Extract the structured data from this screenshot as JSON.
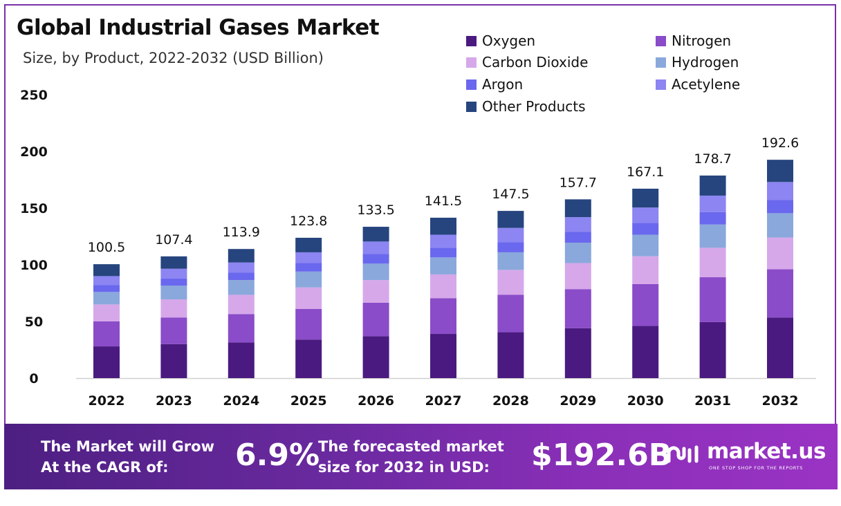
{
  "header": {
    "title": "Global Industrial Gases Market",
    "subtitle": "Size, by Product, 2022-2032 (USD Billion)"
  },
  "colors": {
    "frame": "#7a2fa8",
    "oxygen": "#4a1a80",
    "nitrogen": "#8a4cc8",
    "carbon_dioxide": "#d6a8ea",
    "hydrogen": "#8aa8dc",
    "argon": "#6a68ee",
    "acetylene": "#8c85f2",
    "other_products": "#26457e"
  },
  "chart_data": {
    "type": "bar",
    "stacked": true,
    "categories": [
      "2022",
      "2023",
      "2024",
      "2025",
      "2026",
      "2027",
      "2028",
      "2029",
      "2030",
      "2031",
      "2032"
    ],
    "totals": [
      "100.5",
      "107.4",
      "113.9",
      "123.8",
      "133.5",
      "141.5",
      "147.5",
      "157.7",
      "167.1",
      "178.7",
      "192.6"
    ],
    "ylim": [
      0,
      250
    ],
    "yticks": [
      "0",
      "50",
      "100",
      "150",
      "200",
      "250"
    ],
    "grid": false,
    "legend_position": "top-right",
    "series": [
      {
        "name": "Oxygen",
        "color": "#4a1a80",
        "values": [
          28,
          30,
          31.5,
          34,
          37,
          39,
          40.5,
          44,
          46,
          49.5,
          53.5
        ]
      },
      {
        "name": "Nitrogen",
        "color": "#8a4cc8",
        "values": [
          22,
          23.5,
          25,
          27,
          29.5,
          31.5,
          33,
          34.5,
          37,
          39.5,
          42.5
        ]
      },
      {
        "name": "Carbon Dioxide",
        "color": "#d6a8ea",
        "values": [
          15,
          16,
          17,
          19,
          20,
          21,
          22,
          23,
          24.5,
          26,
          28
        ]
      },
      {
        "name": "Hydrogen",
        "color": "#8aa8dc",
        "values": [
          11,
          12,
          13,
          14,
          14.5,
          15,
          15.5,
          18,
          19,
          20.5,
          21.5
        ]
      },
      {
        "name": "Argon",
        "color": "#6a68ee",
        "values": [
          6,
          6.5,
          6.5,
          7.5,
          8.5,
          8.5,
          9,
          9.5,
          10.5,
          11,
          11.5
        ]
      },
      {
        "name": "Acetylene",
        "color": "#8c85f2",
        "values": [
          8,
          8.5,
          9,
          9.5,
          11,
          11.5,
          12.5,
          13,
          13.5,
          14.5,
          16
        ]
      },
      {
        "name": "Other Products",
        "color": "#26457e",
        "values": [
          10.5,
          10.9,
          11.9,
          12.8,
          13,
          15,
          15,
          15.7,
          16.6,
          17.7,
          19.6
        ]
      }
    ]
  },
  "legend": [
    {
      "label": "Oxygen",
      "color": "#4a1a80"
    },
    {
      "label": "Nitrogen",
      "color": "#8a4cc8"
    },
    {
      "label": "Carbon Dioxide",
      "color": "#d6a8ea"
    },
    {
      "label": "Hydrogen",
      "color": "#8aa8dc"
    },
    {
      "label": "Argon",
      "color": "#6a68ee"
    },
    {
      "label": "Acetylene",
      "color": "#8c85f2"
    },
    {
      "label": "Other Products",
      "color": "#26457e"
    }
  ],
  "banner": {
    "cagr_label": "The Market will Grow At the CAGR of:",
    "cagr_value": "6.9%",
    "forecast_label": "The forecasted market size for 2032 in USD:",
    "forecast_value": "$192.6B",
    "brand": "market.us",
    "tagline": "ONE STOP SHOP FOR THE REPORTS",
    "logo_icon": "market-us-logo-icon"
  }
}
